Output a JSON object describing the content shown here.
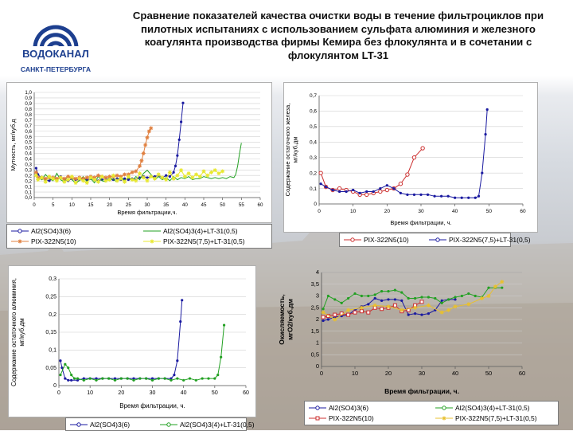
{
  "title": "Сравнение показателей качества очистки воды в течение фильтроциклов при пилотных испытаниях с использованием сульфата алюминия и железного коагулянта производства фирмы Кемира без флокулянта и в сочетании с флокулянтом LT-31",
  "logo": {
    "line1": "ВОДОКАНАЛ",
    "line2": "САНКТ-ПЕТЕРБУРГА"
  },
  "chart_data": [
    {
      "id": "turbidity",
      "type": "line",
      "ylabel": "Мутность, мг/куб.д",
      "xlabel": "Время фильтрации,ч.",
      "xlim": [
        0,
        60
      ],
      "ylim": [
        0,
        1.0
      ],
      "xticks": [
        "0",
        "5",
        "10",
        "15",
        "20",
        "25",
        "30",
        "35",
        "40",
        "45",
        "50",
        "55",
        "60"
      ],
      "yticks": [
        "0,0",
        "0,1",
        "0,1",
        "0,2",
        "0,2",
        "0,3",
        "0,3",
        "0,4",
        "0,4",
        "0,5",
        "0,5",
        "0,6",
        "0,6",
        "0,7",
        "0,7",
        "0,8",
        "0,8",
        "0,9",
        "0,9",
        "1,0"
      ],
      "legend_rows": [
        [
          "Al2(SO4)3(6)",
          "Al2(SO4)3(4)+LT-31(0,5)"
        ],
        [
          "PIX-322N5(10)",
          "PIX-322N5(7,5)+LT-31(0,5)"
        ]
      ],
      "series": [
        {
          "name": "Al2(SO4)3(6)",
          "color": "#1a1aa0",
          "marker": "dot",
          "x": [
            0.5,
            1,
            2,
            3,
            4,
            5,
            6,
            7,
            8,
            9,
            10,
            11,
            12,
            13,
            14,
            15,
            16,
            17,
            18,
            19,
            20,
            21,
            22,
            23,
            24,
            25,
            26,
            27,
            28,
            29,
            30,
            31,
            32,
            33,
            34,
            35,
            36,
            37,
            37.5,
            38,
            38.5,
            39,
            39.5
          ],
          "y": [
            0.28,
            0.22,
            0.18,
            0.17,
            0.16,
            0.18,
            0.17,
            0.2,
            0.17,
            0.16,
            0.18,
            0.17,
            0.17,
            0.18,
            0.17,
            0.18,
            0.17,
            0.16,
            0.17,
            0.18,
            0.17,
            0.17,
            0.18,
            0.17,
            0.18,
            0.17,
            0.18,
            0.17,
            0.19,
            0.2,
            0.19,
            0.2,
            0.2,
            0.21,
            0.19,
            0.21,
            0.2,
            0.24,
            0.3,
            0.4,
            0.55,
            0.72,
            0.9
          ]
        },
        {
          "name": "Al2(SO4)3(4)+LT-31(0,5)",
          "color": "#22a022",
          "marker": "none",
          "x": [
            0.5,
            1,
            2,
            3,
            4,
            5,
            6,
            7,
            8,
            9,
            10,
            11,
            12,
            13,
            14,
            15,
            16,
            17,
            18,
            19,
            20,
            21,
            22,
            23,
            24,
            25,
            26,
            27,
            28,
            29,
            30,
            31,
            32,
            33,
            34,
            35,
            36,
            37,
            38,
            39,
            40,
            41,
            42,
            43,
            44,
            45,
            46,
            47,
            48,
            49,
            50,
            51,
            52,
            53,
            53.5,
            54,
            54.5,
            55
          ],
          "y": [
            0.25,
            0.2,
            0.17,
            0.22,
            0.18,
            0.16,
            0.23,
            0.17,
            0.15,
            0.21,
            0.17,
            0.14,
            0.16,
            0.2,
            0.15,
            0.18,
            0.14,
            0.2,
            0.16,
            0.15,
            0.19,
            0.17,
            0.15,
            0.2,
            0.16,
            0.19,
            0.16,
            0.2,
            0.17,
            0.23,
            0.26,
            0.22,
            0.17,
            0.2,
            0.17,
            0.19,
            0.16,
            0.2,
            0.17,
            0.19,
            0.18,
            0.2,
            0.17,
            0.18,
            0.18,
            0.2,
            0.19,
            0.18,
            0.19,
            0.18,
            0.19,
            0.18,
            0.2,
            0.19,
            0.22,
            0.3,
            0.42,
            0.52
          ]
        },
        {
          "name": "PIX-322N5(10)",
          "color": "#e08040",
          "marker": "star",
          "x": [
            0.5,
            1,
            2,
            3,
            4,
            5,
            6,
            7,
            8,
            9,
            10,
            11,
            12,
            13,
            14,
            15,
            16,
            17,
            18,
            19,
            20,
            21,
            22,
            23,
            24,
            25,
            26,
            27,
            28,
            28.5,
            29,
            29.5,
            30,
            30.5,
            31
          ],
          "y": [
            0.24,
            0.19,
            0.19,
            0.18,
            0.19,
            0.19,
            0.18,
            0.19,
            0.18,
            0.2,
            0.19,
            0.18,
            0.19,
            0.18,
            0.19,
            0.2,
            0.19,
            0.21,
            0.2,
            0.19,
            0.2,
            0.2,
            0.21,
            0.2,
            0.22,
            0.22,
            0.24,
            0.25,
            0.3,
            0.35,
            0.42,
            0.5,
            0.57,
            0.63,
            0.66
          ]
        },
        {
          "name": "PIX-322N5(7,5)+LT-31(0,5)",
          "color": "#e8e830",
          "marker": "star",
          "x": [
            0.5,
            1,
            2,
            3,
            4,
            5,
            6,
            7,
            8,
            9,
            10,
            11,
            12,
            13,
            14,
            15,
            16,
            17,
            18,
            19,
            20,
            21,
            22,
            23,
            24,
            25,
            26,
            27,
            28,
            29,
            30,
            31,
            32,
            33,
            34,
            35,
            36,
            37,
            38,
            39,
            40,
            41,
            42,
            43,
            44,
            45,
            46,
            47,
            48,
            49,
            50
          ],
          "y": [
            0.21,
            0.17,
            0.19,
            0.15,
            0.2,
            0.18,
            0.16,
            0.19,
            0.15,
            0.17,
            0.2,
            0.14,
            0.18,
            0.16,
            0.14,
            0.19,
            0.17,
            0.15,
            0.2,
            0.16,
            0.17,
            0.21,
            0.16,
            0.18,
            0.15,
            0.2,
            0.17,
            0.16,
            0.23,
            0.19,
            0.16,
            0.2,
            0.18,
            0.22,
            0.19,
            0.17,
            0.24,
            0.18,
            0.21,
            0.26,
            0.2,
            0.23,
            0.19,
            0.22,
            0.2,
            0.25,
            0.21,
            0.24,
            0.26,
            0.23,
            0.25
          ]
        }
      ]
    },
    {
      "id": "residual-iron",
      "type": "line",
      "ylabel": "Содержание остаточного железа, мг/куб.дм",
      "xlabel": "Время фильтрации, ч.",
      "xlim": [
        0,
        60
      ],
      "ylim": [
        0,
        0.7
      ],
      "xticks": [
        "0",
        "10",
        "20",
        "30",
        "40",
        "50",
        "60"
      ],
      "yticks": [
        "0",
        "0,1",
        "0,2",
        "0,3",
        "0,4",
        "0,5",
        "0,6",
        "0,7"
      ],
      "legend_rows": [
        [
          "PIX-322N5(10)",
          "PIX-322N5(7,5)+LT-31(0,5)"
        ]
      ],
      "series": [
        {
          "name": "PIX-322N5(10)",
          "color": "#cc3030",
          "marker": "circle",
          "x": [
            0.5,
            2,
            4,
            6,
            8,
            10,
            12,
            14,
            16,
            18,
            20,
            22,
            24,
            26,
            28,
            30.5
          ],
          "y": [
            0.2,
            0.11,
            0.09,
            0.1,
            0.09,
            0.08,
            0.06,
            0.06,
            0.07,
            0.08,
            0.09,
            0.1,
            0.13,
            0.19,
            0.3,
            0.36
          ]
        },
        {
          "name": "PIX-322N5(7,5)+LT-31(0,5)",
          "color": "#1a1aa0",
          "marker": "dot",
          "x": [
            0.5,
            2,
            4,
            6,
            8,
            10,
            12,
            14,
            16,
            18,
            20,
            22,
            24,
            26,
            28,
            30,
            32,
            34,
            36,
            38,
            40,
            42,
            44,
            46,
            47,
            48,
            49,
            49.5
          ],
          "y": [
            0.13,
            0.11,
            0.09,
            0.08,
            0.08,
            0.09,
            0.07,
            0.08,
            0.08,
            0.1,
            0.12,
            0.1,
            0.07,
            0.06,
            0.06,
            0.06,
            0.06,
            0.05,
            0.05,
            0.05,
            0.04,
            0.04,
            0.04,
            0.04,
            0.05,
            0.2,
            0.45,
            0.61
          ]
        }
      ]
    },
    {
      "id": "residual-aluminum",
      "type": "line",
      "ylabel": "Содержание остаточного алюминия, мг/куб.дм",
      "xlabel": "Время фильтрации, ч.",
      "xlim": [
        0,
        60
      ],
      "ylim": [
        0,
        0.3
      ],
      "xticks": [
        "0",
        "10",
        "20",
        "30",
        "40",
        "50",
        "60"
      ],
      "yticks": [
        "0",
        "0,05",
        "0,1",
        "0,15",
        "0,2",
        "0,25",
        "0,3"
      ],
      "legend_rows": [
        [
          "Al2(SO4)3(6)",
          "Al2(SO4)3(4)+LT-31(0,5)"
        ]
      ],
      "series": [
        {
          "name": "Al2(SO4)3(6)",
          "color": "#1a1aa0",
          "marker": "dot",
          "x": [
            0.5,
            1,
            2,
            3,
            4,
            6,
            8,
            10,
            12,
            14,
            16,
            18,
            20,
            22,
            24,
            26,
            28,
            30,
            32,
            34,
            36,
            37,
            38,
            39,
            39.5
          ],
          "y": [
            0.07,
            0.05,
            0.02,
            0.015,
            0.015,
            0.015,
            0.02,
            0.02,
            0.02,
            0.02,
            0.02,
            0.02,
            0.02,
            0.02,
            0.02,
            0.02,
            0.02,
            0.02,
            0.02,
            0.02,
            0.02,
            0.03,
            0.07,
            0.18,
            0.24
          ]
        },
        {
          "name": "Al2(SO4)3(4)+LT-31(0,5)",
          "color": "#22a022",
          "marker": "dot",
          "x": [
            0.5,
            2,
            3,
            4,
            5,
            6,
            8,
            10,
            12,
            14,
            16,
            18,
            20,
            22,
            24,
            26,
            28,
            30,
            32,
            34,
            36,
            38,
            40,
            42,
            44,
            46,
            48,
            50,
            51,
            52,
            53
          ],
          "y": [
            0.03,
            0.06,
            0.05,
            0.03,
            0.02,
            0.02,
            0.015,
            0.02,
            0.015,
            0.02,
            0.02,
            0.015,
            0.02,
            0.02,
            0.015,
            0.02,
            0.02,
            0.015,
            0.02,
            0.02,
            0.015,
            0.02,
            0.015,
            0.02,
            0.015,
            0.02,
            0.02,
            0.02,
            0.03,
            0.08,
            0.17
          ]
        }
      ]
    },
    {
      "id": "oxidizability",
      "type": "line",
      "ylabel": "Окисляемость, мгО2/куб.дм",
      "xlabel": "Время фильтрации, ч.",
      "xlim": [
        0,
        60
      ],
      "ylim": [
        0,
        4
      ],
      "xticks": [
        "0",
        "10",
        "20",
        "30",
        "40",
        "50",
        "60"
      ],
      "yticks": [
        "0",
        "0,5",
        "1",
        "1,5",
        "2",
        "2,5",
        "3",
        "3,5",
        "4"
      ],
      "legend_rows": [
        [
          "Al2(SO4)3(6)",
          "Al2(SO4)3(4)+LT-31(0,5)"
        ],
        [
          "PIX-322N5(10)",
          "PIX-322N5(7,5)+LT-31(0,5)"
        ]
      ],
      "series": [
        {
          "name": "Al2(SO4)3(6)",
          "color": "#1a1aa0",
          "marker": "dot",
          "x": [
            0.5,
            2,
            4,
            6,
            8,
            10,
            12,
            14,
            16,
            18,
            20,
            22,
            24,
            26,
            28,
            30,
            32,
            34,
            36,
            38,
            40
          ],
          "y": [
            1.95,
            2.0,
            2.1,
            2.15,
            2.2,
            2.4,
            2.55,
            2.65,
            2.9,
            2.8,
            2.85,
            2.85,
            2.8,
            2.2,
            2.25,
            2.2,
            2.25,
            2.4,
            2.8,
            2.85,
            2.85
          ]
        },
        {
          "name": "Al2(SO4)3(4)+LT-31(0,5)",
          "color": "#22a022",
          "marker": "dot",
          "x": [
            0.5,
            2,
            4,
            6,
            8,
            10,
            12,
            14,
            16,
            18,
            20,
            22,
            24,
            26,
            28,
            30,
            32,
            34,
            36,
            38,
            40,
            42,
            44,
            46,
            48,
            50,
            52,
            54
          ],
          "y": [
            2.45,
            3.0,
            2.85,
            2.7,
            2.9,
            3.1,
            3.0,
            3.0,
            3.05,
            3.2,
            3.2,
            3.25,
            3.15,
            2.9,
            2.9,
            2.95,
            2.95,
            2.9,
            2.7,
            2.85,
            2.95,
            3.0,
            3.1,
            3.0,
            2.95,
            3.35,
            3.35,
            3.35
          ]
        },
        {
          "name": "PIX-322N5(10)",
          "color": "#cc3030",
          "marker": "square",
          "x": [
            0.5,
            2,
            4,
            6,
            8,
            10,
            12,
            14,
            16,
            18,
            20,
            22,
            24,
            26,
            28,
            30
          ],
          "y": [
            2.1,
            2.15,
            2.2,
            2.25,
            2.2,
            2.3,
            2.35,
            2.3,
            2.5,
            2.45,
            2.5,
            2.6,
            2.35,
            2.4,
            2.6,
            2.75
          ]
        },
        {
          "name": "PIX-322N5(7,5)+LT-31(0,5)",
          "color": "#e8c030",
          "marker": "star",
          "x": [
            0.5,
            4,
            8,
            12,
            16,
            20,
            24,
            28,
            32,
            36,
            38,
            40,
            44,
            48,
            50,
            52,
            54
          ],
          "y": [
            2.3,
            2.0,
            2.4,
            2.5,
            2.6,
            2.55,
            2.4,
            2.5,
            2.6,
            2.3,
            2.4,
            2.55,
            2.65,
            2.9,
            3.0,
            3.4,
            3.6
          ]
        }
      ]
    }
  ]
}
